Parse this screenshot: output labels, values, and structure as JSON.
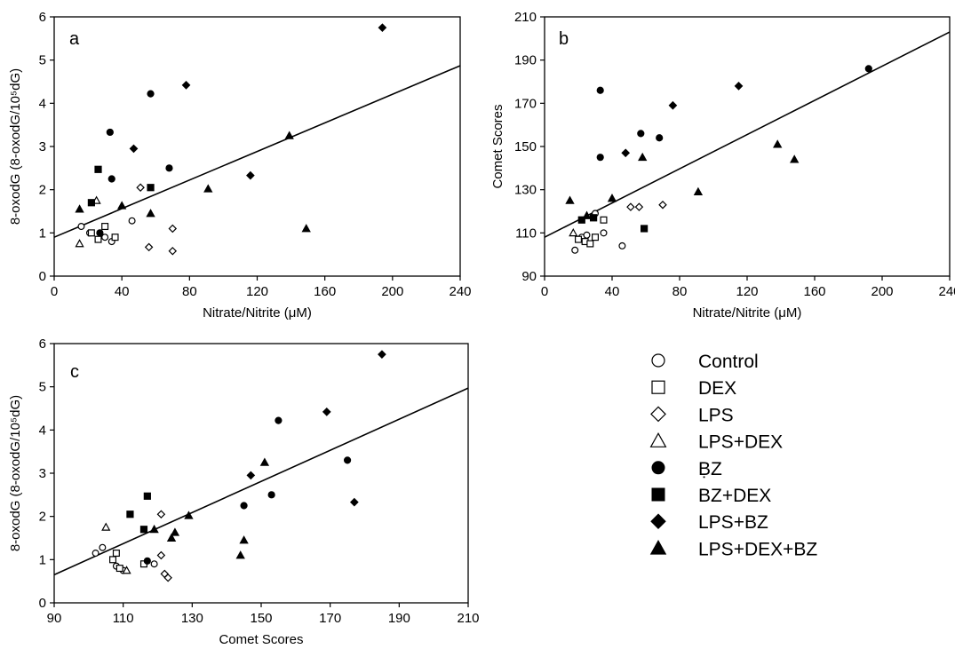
{
  "figure_legend": {
    "items": [
      {
        "label": "Control",
        "marker": "circle",
        "filled": false
      },
      {
        "label": "DEX",
        "marker": "square",
        "filled": false
      },
      {
        "label": "LPS",
        "marker": "diamond",
        "filled": false
      },
      {
        "label": "LPS+DEX",
        "marker": "triangle",
        "filled": false
      },
      {
        "label": "ḄZ",
        "marker": "circle",
        "filled": true
      },
      {
        "label": "BZ+DEX",
        "marker": "square",
        "filled": true
      },
      {
        "label": "LPS+BZ",
        "marker": "diamond",
        "filled": true
      },
      {
        "label": "LPS+DEX+BZ",
        "marker": "triangle",
        "filled": true
      }
    ]
  },
  "chart_data": [
    {
      "type": "scatter",
      "panel_label": "a",
      "xlabel": "Nitrate/Nitrite (μM)",
      "ylabel": "8-oxodG (8-oxodG/10⁵dG)",
      "xlim": [
        0,
        240
      ],
      "ylim": [
        0,
        6
      ],
      "xticks": [
        "0",
        "40",
        "80",
        "120",
        "160",
        "200",
        "240"
      ],
      "yticks": [
        "0",
        "1",
        "2",
        "3",
        "4",
        "5",
        "6"
      ],
      "fit_line": {
        "x": [
          0,
          240
        ],
        "y": [
          0.9,
          4.87
        ]
      },
      "series": [
        {
          "name": "Control",
          "points": [
            [
              16,
              1.15
            ],
            [
              21,
              1.0
            ],
            [
              30,
              0.9
            ],
            [
              34,
              0.8
            ],
            [
              46,
              1.28
            ]
          ]
        },
        {
          "name": "DEX",
          "points": [
            [
              22,
              1.0
            ],
            [
              26,
              0.85
            ],
            [
              30,
              1.15
            ],
            [
              36,
              0.9
            ]
          ]
        },
        {
          "name": "LPS",
          "points": [
            [
              51,
              2.05
            ],
            [
              56,
              0.67
            ],
            [
              70,
              0.58
            ],
            [
              70,
              1.1
            ]
          ]
        },
        {
          "name": "LPS+DEX",
          "points": [
            [
              15,
              0.75
            ],
            [
              25,
              1.75
            ]
          ]
        },
        {
          "name": "ḄZ",
          "points": [
            [
              27,
              1.0
            ],
            [
              33,
              3.33
            ],
            [
              34,
              2.25
            ],
            [
              57,
              4.22
            ],
            [
              68,
              2.5
            ]
          ]
        },
        {
          "name": "BZ+DEX",
          "points": [
            [
              22,
              1.7
            ],
            [
              26,
              2.47
            ],
            [
              57,
              2.05
            ]
          ]
        },
        {
          "name": "LPS+BZ",
          "points": [
            [
              47,
              2.95
            ],
            [
              78,
              4.42
            ],
            [
              116,
              2.33
            ],
            [
              194,
              5.75
            ]
          ]
        },
        {
          "name": "LPS+DEX+BZ",
          "points": [
            [
              15,
              1.55
            ],
            [
              40,
              1.63
            ],
            [
              57,
              1.45
            ],
            [
              91,
              2.02
            ],
            [
              139,
              3.25
            ],
            [
              149,
              1.1
            ]
          ]
        }
      ]
    },
    {
      "type": "scatter",
      "panel_label": "b",
      "xlabel": "Nitrate/Nitrite (μM)",
      "ylabel": "Comet Scores",
      "xlim": [
        0,
        240
      ],
      "ylim": [
        90,
        210
      ],
      "xticks": [
        "0",
        "40",
        "80",
        "120",
        "160",
        "200",
        "240"
      ],
      "yticks": [
        "90",
        "110",
        "130",
        "150",
        "170",
        "190",
        "210"
      ],
      "fit_line": {
        "x": [
          0,
          240
        ],
        "y": [
          108,
          203
        ]
      },
      "series": [
        {
          "name": "Control",
          "points": [
            [
              18,
              102
            ],
            [
              22,
              108
            ],
            [
              25,
              109
            ],
            [
              30,
              119
            ],
            [
              35,
              110
            ],
            [
              46,
              104
            ]
          ]
        },
        {
          "name": "DEX",
          "points": [
            [
              20,
              107
            ],
            [
              24,
              106
            ],
            [
              27,
              105
            ],
            [
              30,
              108
            ],
            [
              35,
              116
            ]
          ]
        },
        {
          "name": "LPS",
          "points": [
            [
              51,
              122
            ],
            [
              56,
              122
            ],
            [
              70,
              123
            ]
          ]
        },
        {
          "name": "LPS+DEX",
          "points": [
            [
              17,
              110
            ]
          ]
        },
        {
          "name": "ḄZ",
          "points": [
            [
              33,
              176
            ],
            [
              33,
              145
            ],
            [
              57,
              156
            ],
            [
              68,
              154
            ],
            [
              192,
              186
            ]
          ]
        },
        {
          "name": "BZ+DEX",
          "points": [
            [
              22,
              116
            ],
            [
              29,
              117
            ],
            [
              59,
              112
            ]
          ]
        },
        {
          "name": "LPS+BZ",
          "points": [
            [
              48,
              147
            ],
            [
              76,
              169
            ],
            [
              115,
              178
            ]
          ]
        },
        {
          "name": "LPS+DEX+BZ",
          "points": [
            [
              15,
              125
            ],
            [
              25,
              118
            ],
            [
              40,
              126
            ],
            [
              58,
              145
            ],
            [
              91,
              129
            ],
            [
              138,
              151
            ],
            [
              148,
              144
            ]
          ]
        }
      ]
    },
    {
      "type": "scatter",
      "panel_label": "c",
      "xlabel": "Comet Scores",
      "ylabel": "8-oxodG (8-oxodG/10⁵dG)",
      "xlim": [
        90,
        210
      ],
      "ylim": [
        0,
        6
      ],
      "xticks": [
        "90",
        "110",
        "130",
        "150",
        "170",
        "190",
        "210"
      ],
      "yticks": [
        "0",
        "1",
        "2",
        "3",
        "4",
        "5",
        "6"
      ],
      "fit_line": {
        "x": [
          90,
          210
        ],
        "y": [
          0.65,
          4.97
        ]
      },
      "series": [
        {
          "name": "Control",
          "points": [
            [
              102,
              1.15
            ],
            [
              104,
              1.28
            ],
            [
              108,
              0.85
            ],
            [
              110,
              0.75
            ],
            [
              119,
              0.9
            ]
          ]
        },
        {
          "name": "DEX",
          "points": [
            [
              107,
              1.0
            ],
            [
              108,
              1.15
            ],
            [
              109,
              0.8
            ],
            [
              116,
              0.9
            ]
          ]
        },
        {
          "name": "LPS",
          "points": [
            [
              121,
              2.05
            ],
            [
              121,
              1.1
            ],
            [
              122,
              0.67
            ],
            [
              123,
              0.58
            ]
          ]
        },
        {
          "name": "LPS+DEX",
          "points": [
            [
              105,
              1.75
            ],
            [
              111,
              0.75
            ]
          ]
        },
        {
          "name": "ḄZ",
          "points": [
            [
              117,
              0.97
            ],
            [
              145,
              2.25
            ],
            [
              153,
              2.5
            ],
            [
              155,
              4.22
            ],
            [
              175,
              3.3
            ]
          ]
        },
        {
          "name": "BZ+DEX",
          "points": [
            [
              112,
              2.05
            ],
            [
              116,
              1.7
            ],
            [
              117,
              2.47
            ]
          ]
        },
        {
          "name": "LPS+BZ",
          "points": [
            [
              147,
              2.95
            ],
            [
              169,
              4.42
            ],
            [
              177,
              2.33
            ],
            [
              185,
              5.75
            ]
          ]
        },
        {
          "name": "LPS+DEX+BZ",
          "points": [
            [
              119,
              1.7
            ],
            [
              124,
              1.5
            ],
            [
              125,
              1.63
            ],
            [
              129,
              2.02
            ],
            [
              144,
              1.1
            ],
            [
              145,
              1.45
            ],
            [
              151,
              3.25
            ]
          ]
        }
      ]
    }
  ]
}
